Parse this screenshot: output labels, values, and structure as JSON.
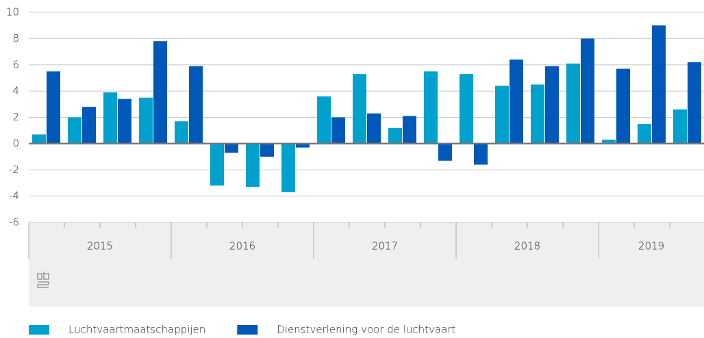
{
  "chart_data": {
    "type": "bar",
    "categories": [
      null,
      null,
      null,
      null,
      null,
      null,
      null,
      null,
      null,
      null,
      null,
      null,
      null,
      null,
      null,
      null,
      null,
      null,
      null
    ],
    "groups": [
      {
        "label": "2015",
        "size": 4
      },
      {
        "label": "2016",
        "size": 4
      },
      {
        "label": "2017",
        "size": 4
      },
      {
        "label": "2018",
        "size": 4
      },
      {
        "label": "2019",
        "size": 3
      }
    ],
    "series": [
      {
        "name": "Luchtvaartmaatschappijen",
        "color": "#00a1cd",
        "values": [
          0.7,
          2.0,
          3.9,
          3.5,
          1.7,
          -3.2,
          -3.3,
          -3.7,
          3.6,
          5.3,
          1.2,
          5.5,
          5.3,
          4.4,
          4.5,
          6.1,
          0.3,
          1.5,
          2.6
        ]
      },
      {
        "name": "Dienstverlening voor de luchtvaart",
        "color": "#0058b8",
        "values": [
          5.5,
          2.8,
          3.4,
          7.8,
          5.9,
          -0.7,
          -1.0,
          -0.3,
          2.0,
          2.3,
          2.1,
          -1.3,
          -1.6,
          6.4,
          5.9,
          8.0,
          5.7,
          9.0,
          6.2
        ]
      }
    ],
    "ylim": [
      -6,
      10
    ],
    "yticks": [
      -6,
      -4,
      -2,
      0,
      2,
      4,
      6,
      8,
      10
    ],
    "grid": true
  }
}
